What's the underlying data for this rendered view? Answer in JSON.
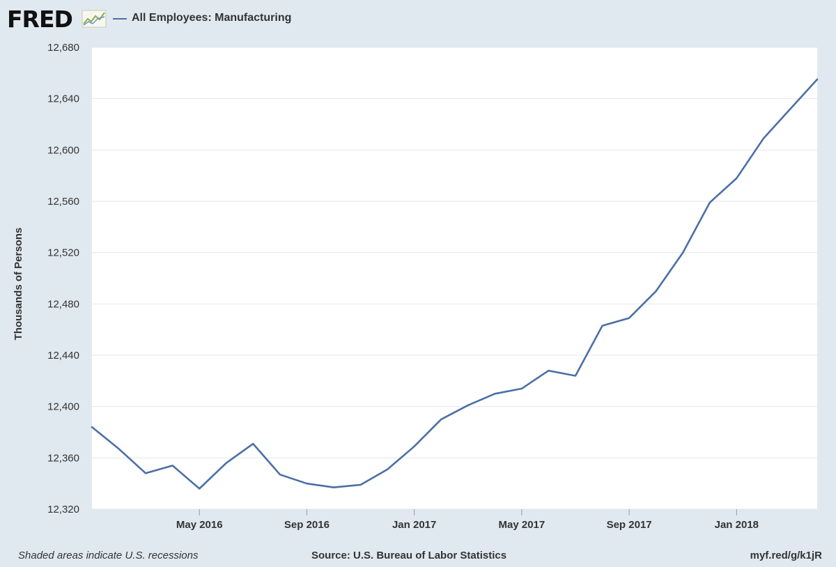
{
  "header": {
    "logo_text": "FRED",
    "legend_label": "All Employees: Manufacturing"
  },
  "footer": {
    "note": "Shaded areas indicate U.S. recessions",
    "source": "Source: U.S. Bureau of Labor Statistics",
    "link": "myf.red/g/k1jR"
  },
  "colors": {
    "series": "#4a6fa5",
    "background": "#e1e9f0",
    "plot_area": "#ffffff",
    "grid": "#e6e6e6"
  },
  "chart_data": {
    "type": "line",
    "ylabel": "Thousands of Persons",
    "xlabel": "",
    "ylim": [
      12320,
      12680
    ],
    "yticks": [
      12320,
      12360,
      12400,
      12440,
      12480,
      12520,
      12560,
      12600,
      12640,
      12680
    ],
    "ytick_labels": [
      "12,320",
      "12,360",
      "12,400",
      "12,440",
      "12,480",
      "12,520",
      "12,560",
      "12,600",
      "12,640",
      "12,680"
    ],
    "xlim": [
      "2016-01",
      "2018-04"
    ],
    "xticks": [
      "2016-05",
      "2016-09",
      "2017-01",
      "2017-05",
      "2017-09",
      "2018-01"
    ],
    "xtick_labels": [
      "May 2016",
      "Sep 2016",
      "Jan 2017",
      "May 2017",
      "Sep 2017",
      "Jan 2018"
    ],
    "grid": true,
    "legend": "top-left",
    "series": [
      {
        "name": "All Employees: Manufacturing",
        "x": [
          "2016-01",
          "2016-02",
          "2016-03",
          "2016-04",
          "2016-05",
          "2016-06",
          "2016-07",
          "2016-08",
          "2016-09",
          "2016-10",
          "2016-11",
          "2016-12",
          "2017-01",
          "2017-02",
          "2017-03",
          "2017-04",
          "2017-05",
          "2017-06",
          "2017-07",
          "2017-08",
          "2017-09",
          "2017-10",
          "2017-11",
          "2017-12",
          "2018-01",
          "2018-02",
          "2018-03",
          "2018-04"
        ],
        "values": [
          12384,
          12367,
          12348,
          12354,
          12336,
          12356,
          12371,
          12347,
          12340,
          12337,
          12339,
          12351,
          12369,
          12390,
          12401,
          12410,
          12414,
          12428,
          12424,
          12463,
          12469,
          12490,
          12520,
          12559,
          12578,
          12609,
          12632,
          12655
        ]
      }
    ]
  }
}
